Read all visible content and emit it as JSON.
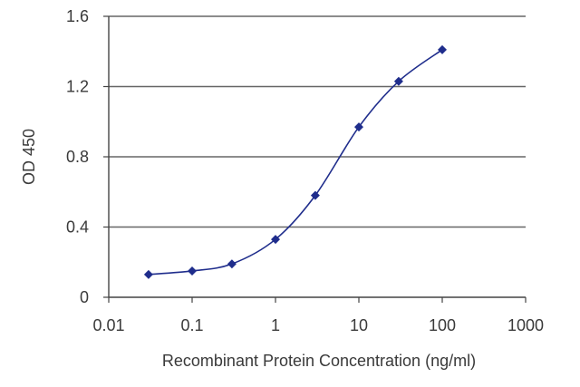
{
  "chart_data": {
    "type": "line",
    "x_scale": "log",
    "xlabel": "Recombinant Protein Concentration (ng/ml)",
    "ylabel": "OD 450",
    "xlim": [
      0.01,
      1000
    ],
    "ylim": [
      0,
      1.6
    ],
    "x_ticks": [
      0.01,
      0.1,
      1,
      10,
      100,
      1000
    ],
    "x_tick_labels": [
      "0.01",
      "0.1",
      "1",
      "10",
      "100",
      "1000"
    ],
    "y_ticks": [
      0,
      0.4,
      0.8,
      1.2,
      1.6
    ],
    "y_tick_labels": [
      "0",
      "0.4",
      "0.8",
      "1.2",
      "1.6"
    ],
    "grid": "horizontal",
    "colors": {
      "series": "#1f2d8c",
      "grid": "#666666",
      "axis": "#444444"
    },
    "series": [
      {
        "x": [
          0.03,
          0.1,
          0.3,
          1,
          3,
          10,
          30,
          100
        ],
        "y": [
          0.13,
          0.15,
          0.19,
          0.33,
          0.58,
          0.97,
          1.23,
          1.41
        ]
      }
    ]
  }
}
